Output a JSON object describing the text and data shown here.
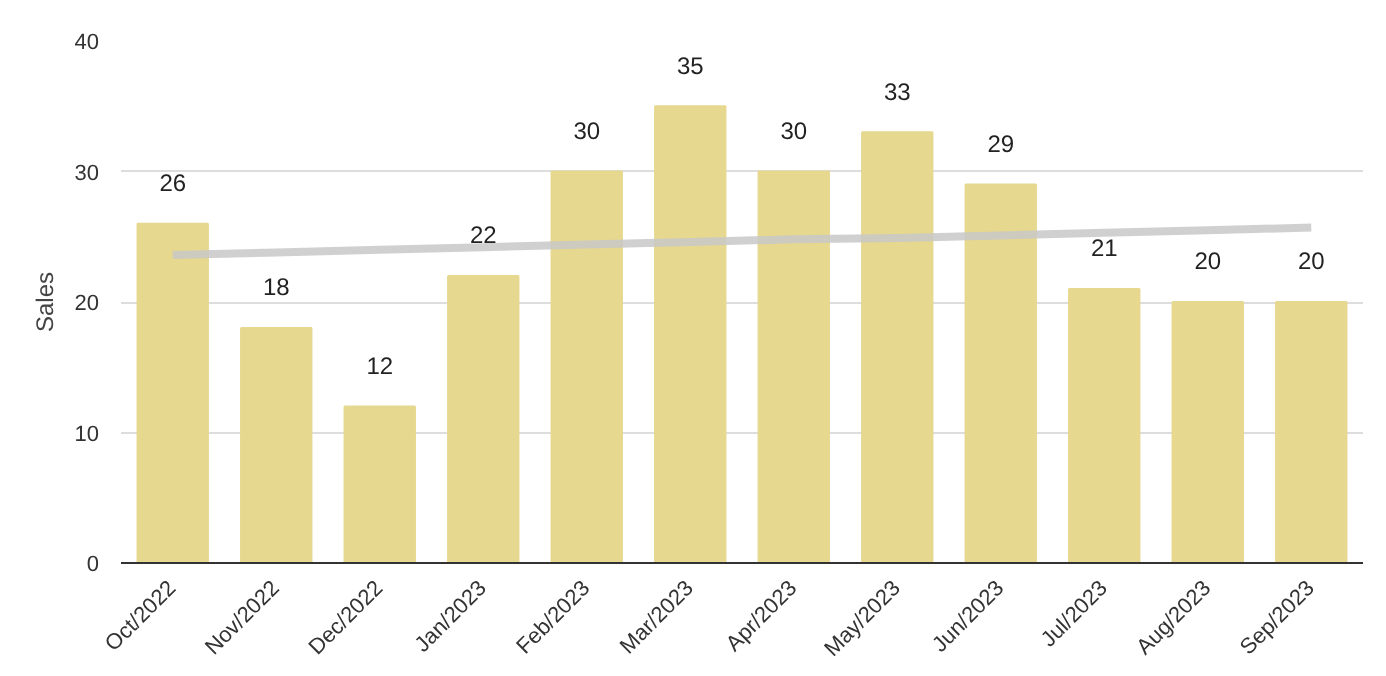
{
  "chart_data": {
    "type": "bar",
    "ylabel": "Sales",
    "categories": [
      "Oct/2022",
      "Nov/2022",
      "Dec/2022",
      "Jan/2023",
      "Feb/2023",
      "Mar/2023",
      "Apr/2023",
      "May/2023",
      "Jun/2023",
      "Jul/2023",
      "Aug/2023",
      "Sep/2023"
    ],
    "series": [
      {
        "color": "#e6d88f",
        "values": [
          26,
          18,
          12,
          22,
          30,
          35,
          30,
          33,
          29,
          21,
          20,
          20
        ],
        "value_labels": [
          "26",
          "18",
          "12",
          "22",
          "30",
          "35",
          "30",
          "33",
          "29",
          "21",
          "20",
          "20"
        ]
      },
      {
        "type": "line",
        "color": "#c8c8c8",
        "values": [
          23.6,
          23.8,
          24.0,
          24.2,
          24.4,
          24.6,
          24.8,
          24.9,
          25.1,
          25.3,
          25.5,
          25.7
        ]
      }
    ],
    "ylim": [
      0,
      40
    ],
    "yticks": [
      0,
      10,
      20,
      30,
      40
    ],
    "grid": "y"
  }
}
